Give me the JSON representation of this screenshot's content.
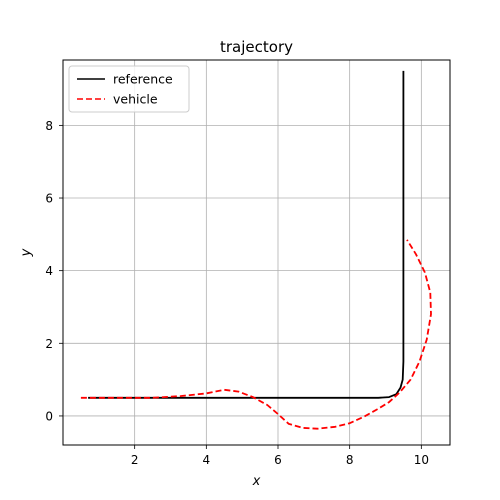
{
  "chart_data": {
    "type": "line",
    "title": "trajectory",
    "xlabel": "x",
    "ylabel": "y",
    "xlim": [
      0,
      10.8
    ],
    "ylim": [
      -0.8,
      9.8
    ],
    "xticks": [
      2,
      4,
      6,
      8,
      10
    ],
    "yticks": [
      0,
      2,
      4,
      6,
      8
    ],
    "grid": true,
    "legend_position": "upper-left",
    "series": [
      {
        "name": "reference",
        "color": "#000000",
        "style": "solid",
        "points": [
          [
            0.7,
            0.5
          ],
          [
            3.0,
            0.5
          ],
          [
            6.0,
            0.5
          ],
          [
            8.8,
            0.5
          ],
          [
            9.1,
            0.52
          ],
          [
            9.3,
            0.6
          ],
          [
            9.42,
            0.78
          ],
          [
            9.48,
            1.0
          ],
          [
            9.5,
            1.5
          ],
          [
            9.5,
            4.0
          ],
          [
            9.5,
            9.5
          ]
        ]
      },
      {
        "name": "vehicle",
        "color": "#ff0000",
        "style": "dashed",
        "points": [
          [
            0.5,
            0.5
          ],
          [
            1.5,
            0.5
          ],
          [
            2.5,
            0.5
          ],
          [
            3.3,
            0.55
          ],
          [
            4.0,
            0.62
          ],
          [
            4.5,
            0.72
          ],
          [
            4.9,
            0.67
          ],
          [
            5.3,
            0.52
          ],
          [
            5.7,
            0.3
          ],
          [
            6.0,
            0.05
          ],
          [
            6.3,
            -0.22
          ],
          [
            6.7,
            -0.33
          ],
          [
            7.1,
            -0.35
          ],
          [
            7.6,
            -0.3
          ],
          [
            8.0,
            -0.2
          ],
          [
            8.4,
            -0.02
          ],
          [
            8.8,
            0.2
          ],
          [
            9.1,
            0.38
          ],
          [
            9.4,
            0.65
          ],
          [
            9.7,
            1.0
          ],
          [
            9.95,
            1.5
          ],
          [
            10.15,
            2.1
          ],
          [
            10.27,
            2.8
          ],
          [
            10.25,
            3.4
          ],
          [
            10.1,
            3.95
          ],
          [
            9.85,
            4.45
          ],
          [
            9.6,
            4.85
          ]
        ]
      }
    ]
  }
}
